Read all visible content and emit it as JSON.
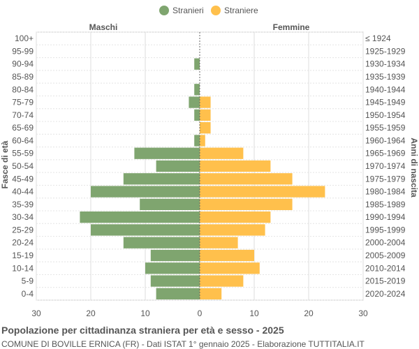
{
  "chart_data": {
    "type": "bar",
    "orientation": "horizontal-pyramid",
    "title": "Popolazione per cittadinanza straniera per età e sesso - 2025",
    "subtitle": "COMUNE DI BOVILLE ERNICA (FR) - Dati ISTAT 1° gennaio 2025 - Elaborazione TUTTITALIA.IT",
    "left_header": "Maschi",
    "right_header": "Femmine",
    "ylabel_left": "Fasce di età",
    "ylabel_right": "Anni di nascita",
    "legend": {
      "position": "top",
      "items": [
        {
          "label": "Stranieri",
          "color": "#7fa56f"
        },
        {
          "label": "Straniere",
          "color": "#ffc04c"
        }
      ]
    },
    "xlim": [
      -30,
      30
    ],
    "xticks": [
      "30",
      "20",
      "10",
      "0",
      "10",
      "20",
      "30"
    ],
    "grid": true,
    "categories": [
      "100+",
      "95-99",
      "90-94",
      "85-89",
      "80-84",
      "75-79",
      "70-74",
      "65-69",
      "60-64",
      "55-59",
      "50-54",
      "45-49",
      "40-44",
      "35-39",
      "30-34",
      "25-29",
      "20-24",
      "15-19",
      "10-14",
      "5-9",
      "0-4"
    ],
    "birth_years": [
      "≤ 1924",
      "1925-1929",
      "1930-1934",
      "1935-1939",
      "1940-1944",
      "1945-1949",
      "1950-1954",
      "1955-1959",
      "1960-1964",
      "1965-1969",
      "1970-1974",
      "1975-1979",
      "1980-1984",
      "1985-1989",
      "1990-1994",
      "1995-1999",
      "2000-2004",
      "2005-2009",
      "2010-2014",
      "2015-2019",
      "2020-2024"
    ],
    "series": [
      {
        "name": "Stranieri",
        "color": "#7fa56f",
        "values": [
          0,
          0,
          1,
          0,
          1,
          2,
          1,
          0,
          1,
          12,
          8,
          14,
          20,
          11,
          22,
          20,
          14,
          9,
          10,
          9,
          8
        ]
      },
      {
        "name": "Straniere",
        "color": "#ffc04c",
        "values": [
          0,
          0,
          0,
          0,
          0,
          2,
          2,
          2,
          1,
          8,
          13,
          17,
          23,
          17,
          13,
          12,
          7,
          10,
          11,
          8,
          4
        ]
      }
    ]
  }
}
